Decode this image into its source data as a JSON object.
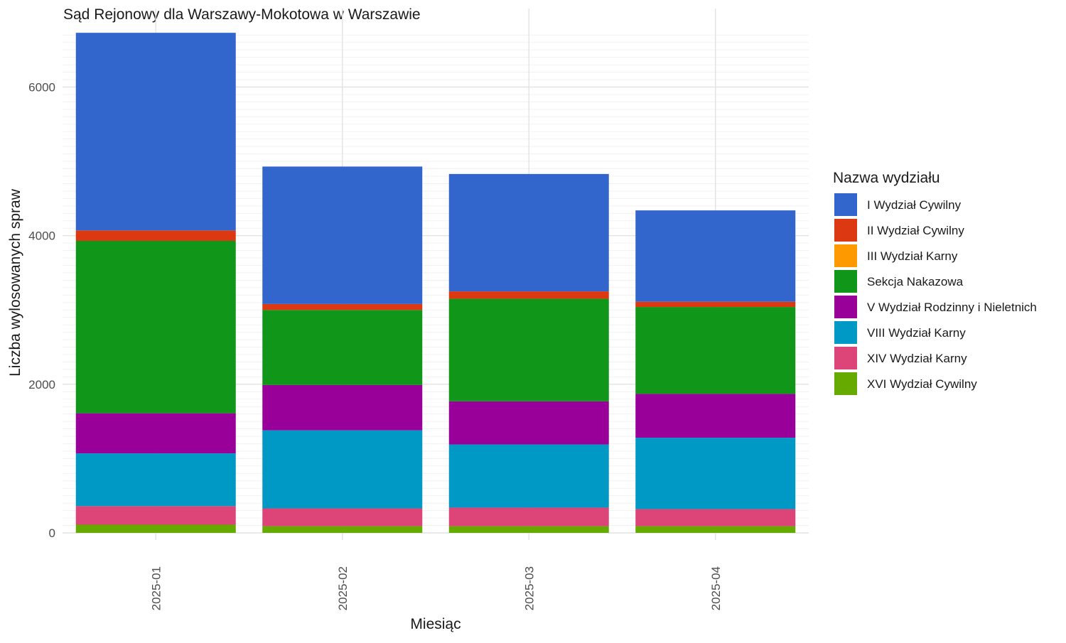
{
  "chart_data": {
    "type": "bar",
    "stacked": true,
    "title": "Sąd Rejonowy dla Warszawy-Mokotowa w Warszawie",
    "xlabel": "Miesiąc",
    "ylabel": "Liczba wylosowanych spraw",
    "legend_title": "Nazwa wydziału",
    "legend_position": "right",
    "grid": true,
    "ylim": [
      0,
      6750
    ],
    "yticks": [
      0,
      2000,
      4000,
      6000
    ],
    "categories": [
      "2025-01",
      "2025-02",
      "2025-03",
      "2025-04"
    ],
    "series": [
      {
        "name": "I Wydział Cywilny",
        "color": "#3366CC",
        "values": [
          2660,
          1850,
          1580,
          1230
        ]
      },
      {
        "name": "II Wydział Cywilny",
        "color": "#DC3912",
        "values": [
          140,
          80,
          100,
          70
        ]
      },
      {
        "name": "III Wydział Karny",
        "color": "#FF9900",
        "values": [
          0,
          0,
          0,
          0
        ]
      },
      {
        "name": "Sekcja Nakazowa",
        "color": "#109618",
        "values": [
          2320,
          1010,
          1380,
          1170
        ]
      },
      {
        "name": "V Wydział Rodzinny i Nieletnich",
        "color": "#990099",
        "values": [
          540,
          610,
          580,
          590
        ]
      },
      {
        "name": "VIII Wydział Karny",
        "color": "#0099C6",
        "values": [
          710,
          1050,
          850,
          960
        ]
      },
      {
        "name": "XIV Wydział Karny",
        "color": "#DD4477",
        "values": [
          250,
          240,
          250,
          230
        ]
      },
      {
        "name": "XVI Wydział Cywilny",
        "color": "#66AA00",
        "values": [
          110,
          90,
          90,
          90
        ]
      }
    ]
  }
}
